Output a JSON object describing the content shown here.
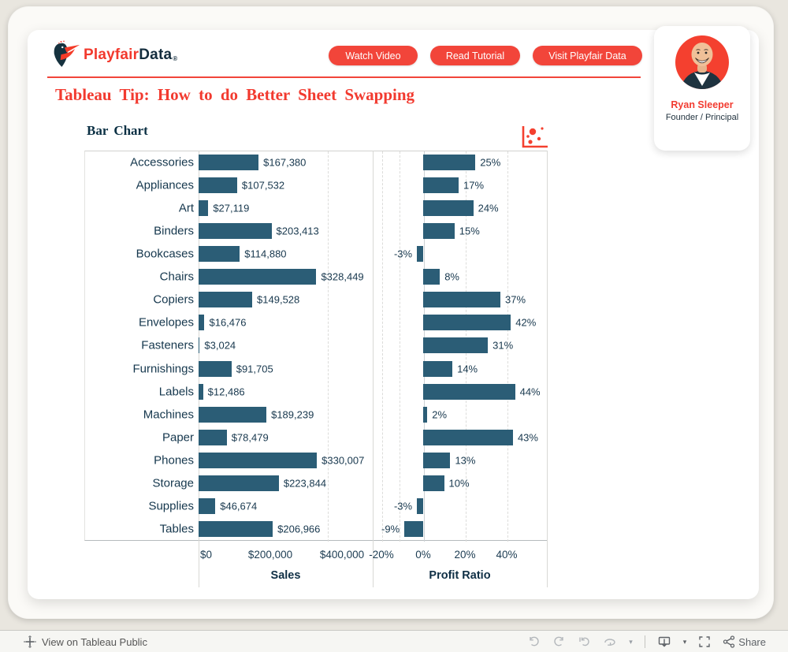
{
  "header": {
    "logo": {
      "brand_first": "Playfair",
      "brand_second": "Data",
      "reg": "®"
    },
    "buttons": [
      {
        "label": "Watch Video"
      },
      {
        "label": "Read Tutorial"
      },
      {
        "label": "Visit Playfair Data"
      }
    ],
    "title": "Tableau Tip: How to do Better Sheet Swapping"
  },
  "profile": {
    "name": "Ryan Sleeper",
    "role": "Founder / Principal"
  },
  "chart_data": {
    "type": "bar",
    "orientation": "horizontal",
    "title": "Bar Chart",
    "bar_color": "#2b5d76",
    "grid": "vertical-dashed",
    "categories": [
      "Accessories",
      "Appliances",
      "Art",
      "Binders",
      "Bookcases",
      "Chairs",
      "Copiers",
      "Envelopes",
      "Fasteners",
      "Furnishings",
      "Labels",
      "Machines",
      "Paper",
      "Phones",
      "Storage",
      "Supplies",
      "Tables"
    ],
    "series": [
      {
        "name": "Sales",
        "values": [
          167380,
          107532,
          27119,
          203413,
          114880,
          328449,
          149528,
          16476,
          3024,
          91705,
          12486,
          189239,
          78479,
          330007,
          223844,
          46674,
          206966
        ],
        "labels": [
          "$167,380",
          "$107,532",
          "$27,119",
          "$203,413",
          "$114,880",
          "$328,449",
          "$149,528",
          "$16,476",
          "$3,024",
          "$91,705",
          "$12,486",
          "$189,239",
          "$78,479",
          "$330,007",
          "$223,844",
          "$46,674",
          "$206,966"
        ],
        "axis": {
          "label": "Sales",
          "ticks": [
            "$0",
            "$200,000",
            "$400,000"
          ],
          "tick_values": [
            0,
            200000,
            400000
          ],
          "range": [
            0,
            485000
          ]
        }
      },
      {
        "name": "Profit Ratio",
        "values": [
          25,
          17,
          24,
          15,
          -3,
          8,
          37,
          42,
          31,
          14,
          44,
          2,
          43,
          13,
          10,
          -3,
          -9
        ],
        "labels": [
          "25%",
          "17%",
          "24%",
          "15%",
          "-3%",
          "8%",
          "37%",
          "42%",
          "31%",
          "14%",
          "44%",
          "2%",
          "43%",
          "13%",
          "10%",
          "-3%",
          "-9%"
        ],
        "axis": {
          "label": "Profit Ratio",
          "ticks": [
            "-20%",
            "0%",
            "20%",
            "40%"
          ],
          "tick_values": [
            -20,
            0,
            20,
            40
          ],
          "range": [
            -24,
            59
          ]
        }
      }
    ]
  },
  "swap_icon": "scatter-plot-icon",
  "toolbar": {
    "view_label": "View on Tableau Public",
    "share_label": "Share"
  },
  "colors": {
    "accent_red": "#f2453a",
    "navy": "#0b3044",
    "bar_teal": "#2b5d76",
    "page_bg": "#e9e6df"
  }
}
